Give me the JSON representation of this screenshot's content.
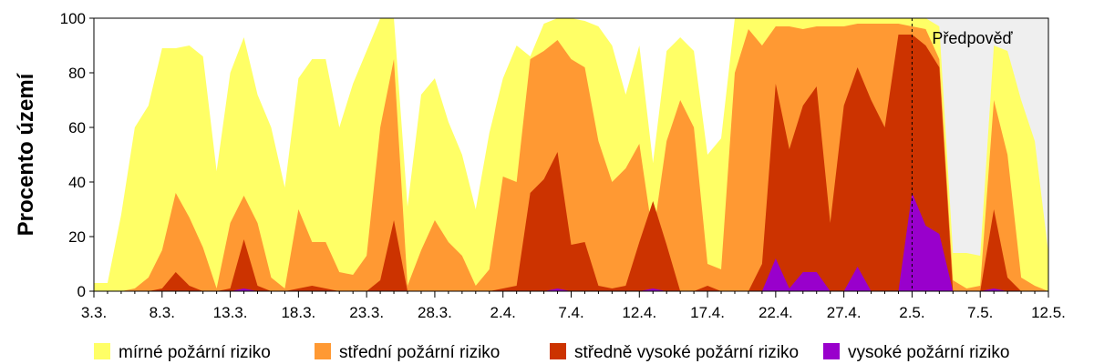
{
  "chart_data": {
    "type": "area",
    "stacked": false,
    "ylabel": "Procento území",
    "ylim": [
      0,
      100
    ],
    "yticks": [
      0,
      20,
      40,
      60,
      80,
      100
    ],
    "x_start": "3.3.",
    "x_end": "12.5.",
    "x_count": 71,
    "xtick_labels": [
      "3.3.",
      "8.3.",
      "13.3.",
      "18.3.",
      "23.3.",
      "28.3.",
      "2.4.",
      "7.4.",
      "12.4.",
      "17.4.",
      "22.4.",
      "27.4.",
      "2.5.",
      "7.5.",
      "12.5."
    ],
    "forecast": {
      "label": "Předpověď",
      "start": "2.5.",
      "end": "12.5.",
      "color": "#efefef"
    },
    "legend_position": "bottom",
    "series": [
      {
        "name": "mírné požární riziko",
        "color": "#ffff66",
        "values": [
          3,
          3,
          28,
          60,
          68,
          89,
          89,
          90,
          86,
          44,
          80,
          93,
          72,
          60,
          38,
          78,
          85,
          85,
          60,
          76,
          88,
          100,
          100,
          31,
          72,
          78,
          62,
          50,
          30,
          58,
          78,
          90,
          86,
          98,
          100,
          100,
          99,
          97,
          90,
          72,
          90,
          47,
          88,
          93,
          88,
          50,
          56,
          100,
          100,
          100,
          100,
          100,
          100,
          100,
          100,
          100,
          100,
          100,
          100,
          100,
          100,
          100,
          97,
          14,
          14,
          13,
          90,
          88,
          70,
          55,
          14
        ]
      },
      {
        "name": "střední požární riziko",
        "color": "#ff9933",
        "values": [
          0,
          0,
          0,
          1,
          5,
          15,
          36,
          27,
          16,
          1,
          25,
          35,
          25,
          5,
          1,
          30,
          18,
          18,
          7,
          6,
          13,
          60,
          85,
          2,
          15,
          26,
          18,
          13,
          2,
          8,
          42,
          40,
          85,
          88,
          92,
          85,
          82,
          55,
          40,
          45,
          54,
          20,
          55,
          70,
          60,
          10,
          8,
          80,
          96,
          90,
          97,
          97,
          96,
          97,
          97,
          97,
          98,
          98,
          98,
          98,
          97,
          96,
          85,
          4,
          1,
          2,
          70,
          50,
          5,
          2,
          0
        ]
      },
      {
        "name": "středně vysoké požární riziko",
        "color": "#cc3300",
        "values": [
          0,
          0,
          0,
          0,
          0,
          1,
          7,
          2,
          0,
          0,
          1,
          19,
          2,
          0,
          0,
          1,
          2,
          1,
          0,
          0,
          0,
          4,
          26,
          0,
          0,
          0,
          0,
          0,
          0,
          0,
          1,
          2,
          36,
          41,
          51,
          17,
          18,
          2,
          1,
          2,
          18,
          33,
          17,
          0,
          0,
          2,
          0,
          0,
          0,
          10,
          76,
          52,
          68,
          75,
          25,
          68,
          82,
          70,
          60,
          94,
          94,
          90,
          82,
          0,
          0,
          0,
          30,
          5,
          0,
          0,
          0
        ]
      },
      {
        "name": "vysoké požární riziko",
        "color": "#9900cc",
        "values": [
          0,
          0,
          0,
          0,
          0,
          0,
          0,
          0,
          0,
          0,
          0,
          1,
          0,
          0,
          0,
          0,
          0,
          0,
          0,
          0,
          0,
          0,
          0,
          0,
          0,
          0,
          0,
          0,
          0,
          0,
          0,
          0,
          0,
          0,
          1,
          0,
          0,
          0,
          0,
          0,
          0,
          1,
          0,
          0,
          0,
          0,
          0,
          0,
          0,
          0,
          12,
          1,
          7,
          7,
          0,
          0,
          9,
          0,
          0,
          0,
          36,
          24,
          21,
          0,
          0,
          0,
          1,
          0,
          0,
          0,
          0
        ]
      }
    ]
  }
}
